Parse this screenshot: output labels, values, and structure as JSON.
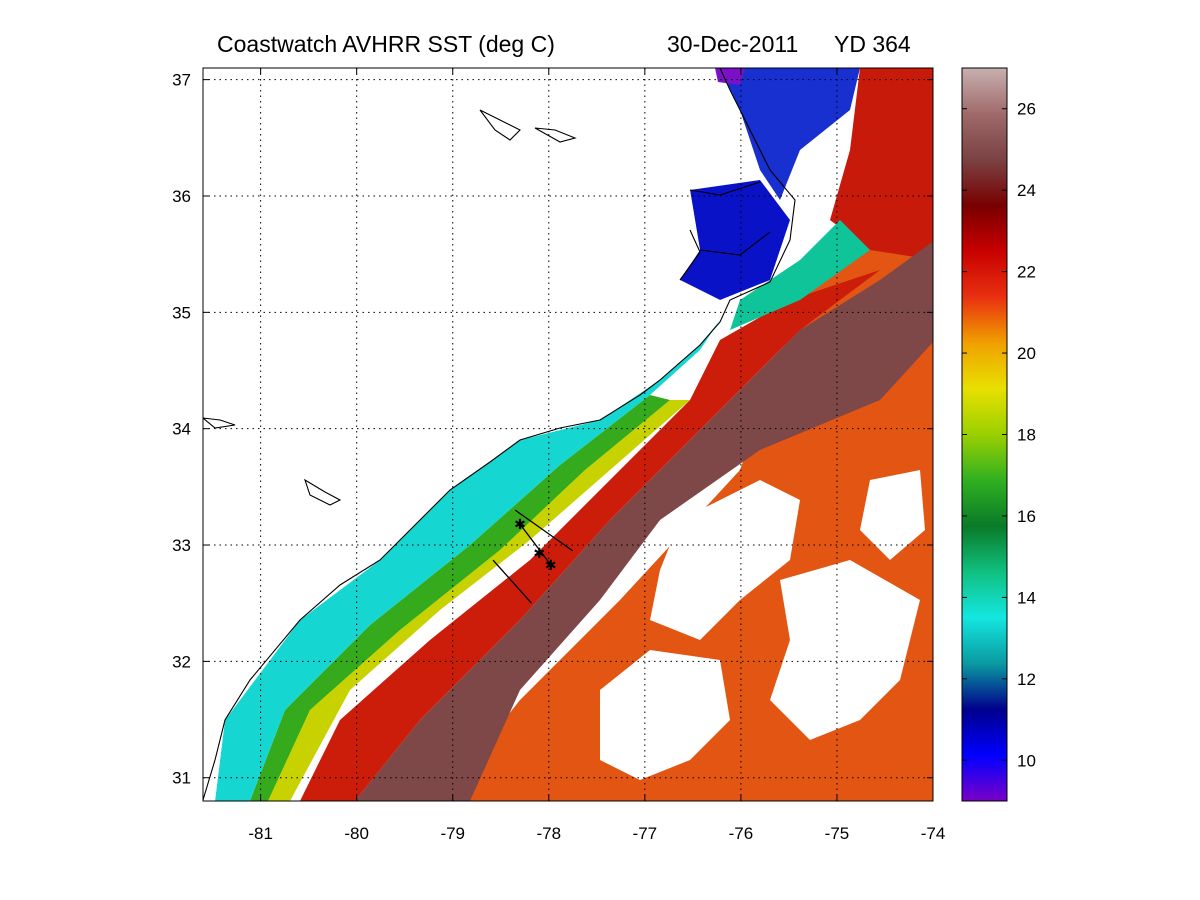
{
  "title": {
    "source": "Coastwatch   AVHRR   SST  (deg C)",
    "date": "30-Dec-2011",
    "yearday": "YD 364"
  },
  "map": {
    "lon_range": [
      -81.6,
      -74.0
    ],
    "lat_range": [
      30.8,
      37.1
    ],
    "lon_ticks": [
      -81,
      -80,
      -79,
      -78,
      -77,
      -76,
      -75,
      -74
    ],
    "lat_ticks": [
      31,
      32,
      33,
      34,
      35,
      36,
      37
    ],
    "lon_tick_labels": [
      "-81",
      "-80",
      "-79",
      "-78",
      "-77",
      "-76",
      "-75",
      "-74"
    ],
    "lat_tick_labels": [
      "31",
      "32",
      "33",
      "34",
      "35",
      "36",
      "37"
    ],
    "grid": "dotted"
  },
  "colorbar": {
    "range": [
      9,
      27
    ],
    "tick_values": [
      10,
      12,
      14,
      16,
      18,
      20,
      22,
      24,
      26
    ],
    "tick_labels": [
      "10",
      "12",
      "14",
      "16",
      "18",
      "20",
      "22",
      "24",
      "26"
    ],
    "colors": [
      "#7a00c8",
      "#0000ff",
      "#00008c",
      "#0a9aa0",
      "#14e6e0",
      "#10c080",
      "#0a7a28",
      "#30b020",
      "#9ad000",
      "#e8e000",
      "#f0a000",
      "#e83010",
      "#c80000",
      "#780000",
      "#7a4242",
      "#a06a6a",
      "#c8b0b0"
    ]
  },
  "transects": [
    {
      "start": [
        -78.35,
        33.3
      ],
      "end": [
        -77.75,
        32.95
      ]
    },
    {
      "start": [
        -78.58,
        32.87
      ],
      "end": [
        -78.18,
        32.5
      ]
    }
  ],
  "stations": [
    [
      -78.3,
      33.18
    ],
    [
      -78.1,
      32.93
    ],
    [
      -77.98,
      32.83
    ]
  ],
  "sst_zones": {
    "land": "#ffffff",
    "cloud": "#ffffff",
    "shelf_cold": "#14d8d4",
    "shelf_mid": "#10c8a0",
    "front_green": "#2ea81a",
    "front_yellow": "#cfd400",
    "slope_red": "#d01e0a",
    "gulf_stream_core": "#7f4a4a",
    "offshore_orange": "#e85a10",
    "sound_water": "#0a14c8"
  }
}
